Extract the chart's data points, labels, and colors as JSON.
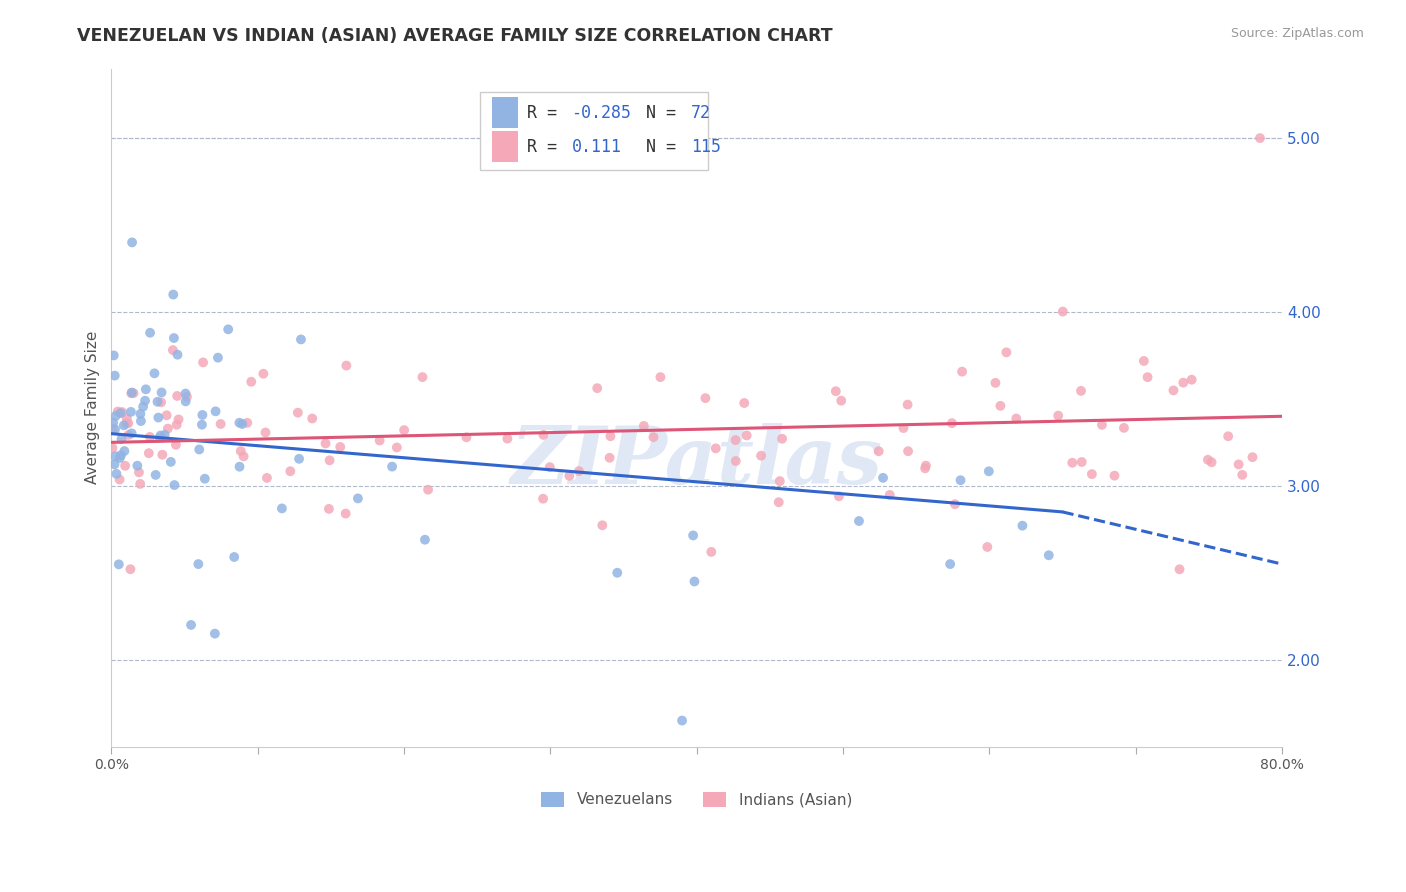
{
  "title": "VENEZUELAN VS INDIAN (ASIAN) AVERAGE FAMILY SIZE CORRELATION CHART",
  "source": "Source: ZipAtlas.com",
  "ylabel": "Average Family Size",
  "legend_label1": "Venezuelans",
  "legend_label2": "Indians (Asian)",
  "r1": -0.285,
  "n1": 72,
  "r2": 0.111,
  "n2": 115,
  "color_blue": "#92b4e3",
  "color_pink": "#f4a8b8",
  "color_blue_dark": "#3366cc",
  "color_line_blue": "#3366cc",
  "color_line_pink": "#dd5577",
  "yticks": [
    2.0,
    3.0,
    4.0,
    5.0
  ],
  "xlim": [
    0.0,
    0.8
  ],
  "ylim": [
    1.5,
    5.4
  ],
  "watermark": "ZIPatlas",
  "blue_line_x0": 0.0,
  "blue_line_y0": 3.3,
  "blue_line_x1": 0.65,
  "blue_line_y1": 2.85,
  "blue_line_dash_x1": 0.8,
  "blue_line_dash_y1": 2.55,
  "pink_line_x0": 0.0,
  "pink_line_y0": 3.25,
  "pink_line_x1": 0.8,
  "pink_line_y1": 3.4
}
